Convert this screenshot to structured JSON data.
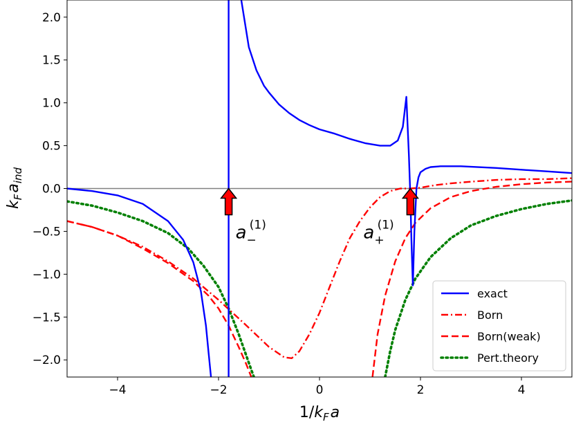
{
  "chart_data": {
    "type": "line",
    "xlabel": "1/k_F a",
    "ylabel": "k_F a_ind",
    "xlim": [
      -5,
      5
    ],
    "ylim": [
      -2.2,
      2.2
    ],
    "xticks": [
      -4,
      -2,
      0,
      2,
      4
    ],
    "xtick_labels": [
      "−4",
      "−2",
      "0",
      "2",
      "4"
    ],
    "yticks": [
      -2.0,
      -1.5,
      -1.0,
      -0.5,
      0.0,
      0.5,
      1.0,
      1.5,
      2.0
    ],
    "ytick_labels": [
      "−2.0",
      "−1.5",
      "−1.0",
      "−0.5",
      "0.0",
      "0.5",
      "1.0",
      "1.5",
      "2.0"
    ],
    "grid": false,
    "legend_position": "lower-right",
    "reference_line": {
      "y": 0,
      "color": "#808080"
    },
    "series": [
      {
        "name": "exact",
        "color": "#0000ff",
        "style": "solid",
        "segments": [
          {
            "x": [
              -5.0,
              -4.5,
              -4.0,
              -3.5,
              -3.0,
              -2.7,
              -2.5,
              -2.35,
              -2.25,
              -2.2,
              -2.15
            ],
            "y": [
              0.0,
              -0.03,
              -0.08,
              -0.18,
              -0.38,
              -0.6,
              -0.86,
              -1.2,
              -1.6,
              -1.9,
              -2.2
            ]
          },
          {
            "x": [
              -1.8,
              -1.8
            ],
            "y": [
              -2.2,
              2.2
            ]
          },
          {
            "x": [
              -1.55,
              -1.4,
              -1.25,
              -1.1,
              -1.0,
              -0.8,
              -0.6,
              -0.4,
              -0.2,
              0.0,
              0.3,
              0.6,
              0.9,
              1.2,
              1.4,
              1.55,
              1.65,
              1.72,
              1.77,
              1.8,
              1.82,
              1.85,
              1.88,
              1.92,
              1.96,
              2.0,
              2.1,
              2.2,
              2.4,
              2.8,
              3.5,
              4.0,
              4.5,
              5.0
            ],
            "y": [
              2.2,
              1.65,
              1.38,
              1.2,
              1.12,
              0.98,
              0.88,
              0.8,
              0.74,
              0.69,
              0.64,
              0.58,
              0.53,
              0.5,
              0.5,
              0.56,
              0.72,
              1.07,
              0.4,
              -0.1,
              -0.6,
              -1.13,
              -0.5,
              0.0,
              0.13,
              0.19,
              0.23,
              0.25,
              0.26,
              0.26,
              0.24,
              0.22,
              0.2,
              0.18
            ]
          }
        ]
      },
      {
        "name": "Born",
        "color": "#ff0000",
        "style": "dashdot",
        "segments": [
          {
            "x": [
              -5.0,
              -4.5,
              -4.0,
              -3.5,
              -3.0,
              -2.5,
              -2.0,
              -1.5,
              -1.0,
              -0.7,
              -0.55,
              -0.4,
              -0.2,
              0.0,
              0.2,
              0.4,
              0.6,
              0.8,
              1.0,
              1.2,
              1.4,
              1.6,
              1.8,
              2.0,
              2.3,
              2.6,
              3.0,
              3.5,
              4.0,
              4.5,
              5.0
            ],
            "y": [
              -0.38,
              -0.45,
              -0.55,
              -0.68,
              -0.85,
              -1.05,
              -1.3,
              -1.57,
              -1.85,
              -1.97,
              -1.98,
              -1.9,
              -1.7,
              -1.45,
              -1.15,
              -0.85,
              -0.58,
              -0.38,
              -0.22,
              -0.1,
              -0.03,
              0.0,
              0.0,
              0.01,
              0.04,
              0.06,
              0.08,
              0.1,
              0.11,
              0.11,
              0.12
            ]
          }
        ]
      },
      {
        "name": "Born(weak)",
        "color": "#ff0000",
        "style": "dashed",
        "segments": [
          {
            "x": [
              -5.0,
              -4.5,
              -4.0,
              -3.5,
              -3.0,
              -2.5,
              -2.2,
              -2.0,
              -1.8,
              -1.6,
              -1.45,
              -1.35
            ],
            "y": [
              -0.38,
              -0.45,
              -0.55,
              -0.7,
              -0.87,
              -1.08,
              -1.25,
              -1.4,
              -1.6,
              -1.85,
              -2.05,
              -2.2
            ]
          },
          {
            "x": [
              1.05,
              1.15,
              1.3,
              1.5,
              1.7,
              1.9,
              2.2,
              2.6,
              3.0,
              3.5,
              4.0,
              4.5,
              5.0
            ],
            "y": [
              -2.2,
              -1.7,
              -1.25,
              -0.85,
              -0.58,
              -0.4,
              -0.23,
              -0.1,
              -0.03,
              0.02,
              0.05,
              0.07,
              0.08
            ]
          }
        ]
      },
      {
        "name": "Pert.theory",
        "color": "#008000",
        "style": "dotted",
        "segments": [
          {
            "x": [
              -5.0,
              -4.5,
              -4.0,
              -3.5,
              -3.0,
              -2.6,
              -2.3,
              -2.0,
              -1.8,
              -1.6,
              -1.45,
              -1.3
            ],
            "y": [
              -0.15,
              -0.2,
              -0.28,
              -0.38,
              -0.52,
              -0.7,
              -0.9,
              -1.15,
              -1.4,
              -1.7,
              -1.95,
              -2.2
            ]
          },
          {
            "x": [
              1.3,
              1.4,
              1.5,
              1.7,
              1.9,
              2.2,
              2.6,
              3.0,
              3.5,
              4.0,
              4.5,
              5.0
            ],
            "y": [
              -2.2,
              -1.9,
              -1.65,
              -1.3,
              -1.05,
              -0.8,
              -0.58,
              -0.43,
              -0.32,
              -0.24,
              -0.18,
              -0.14
            ]
          }
        ]
      }
    ],
    "annotations": [
      {
        "x": -1.8,
        "y": 0.0,
        "label_base": "a",
        "label_sub": "−",
        "label_sup": "(1)"
      },
      {
        "x": 1.8,
        "y": 0.0,
        "label_base": "a",
        "label_sub": "+",
        "label_sup": "(1)"
      }
    ]
  }
}
